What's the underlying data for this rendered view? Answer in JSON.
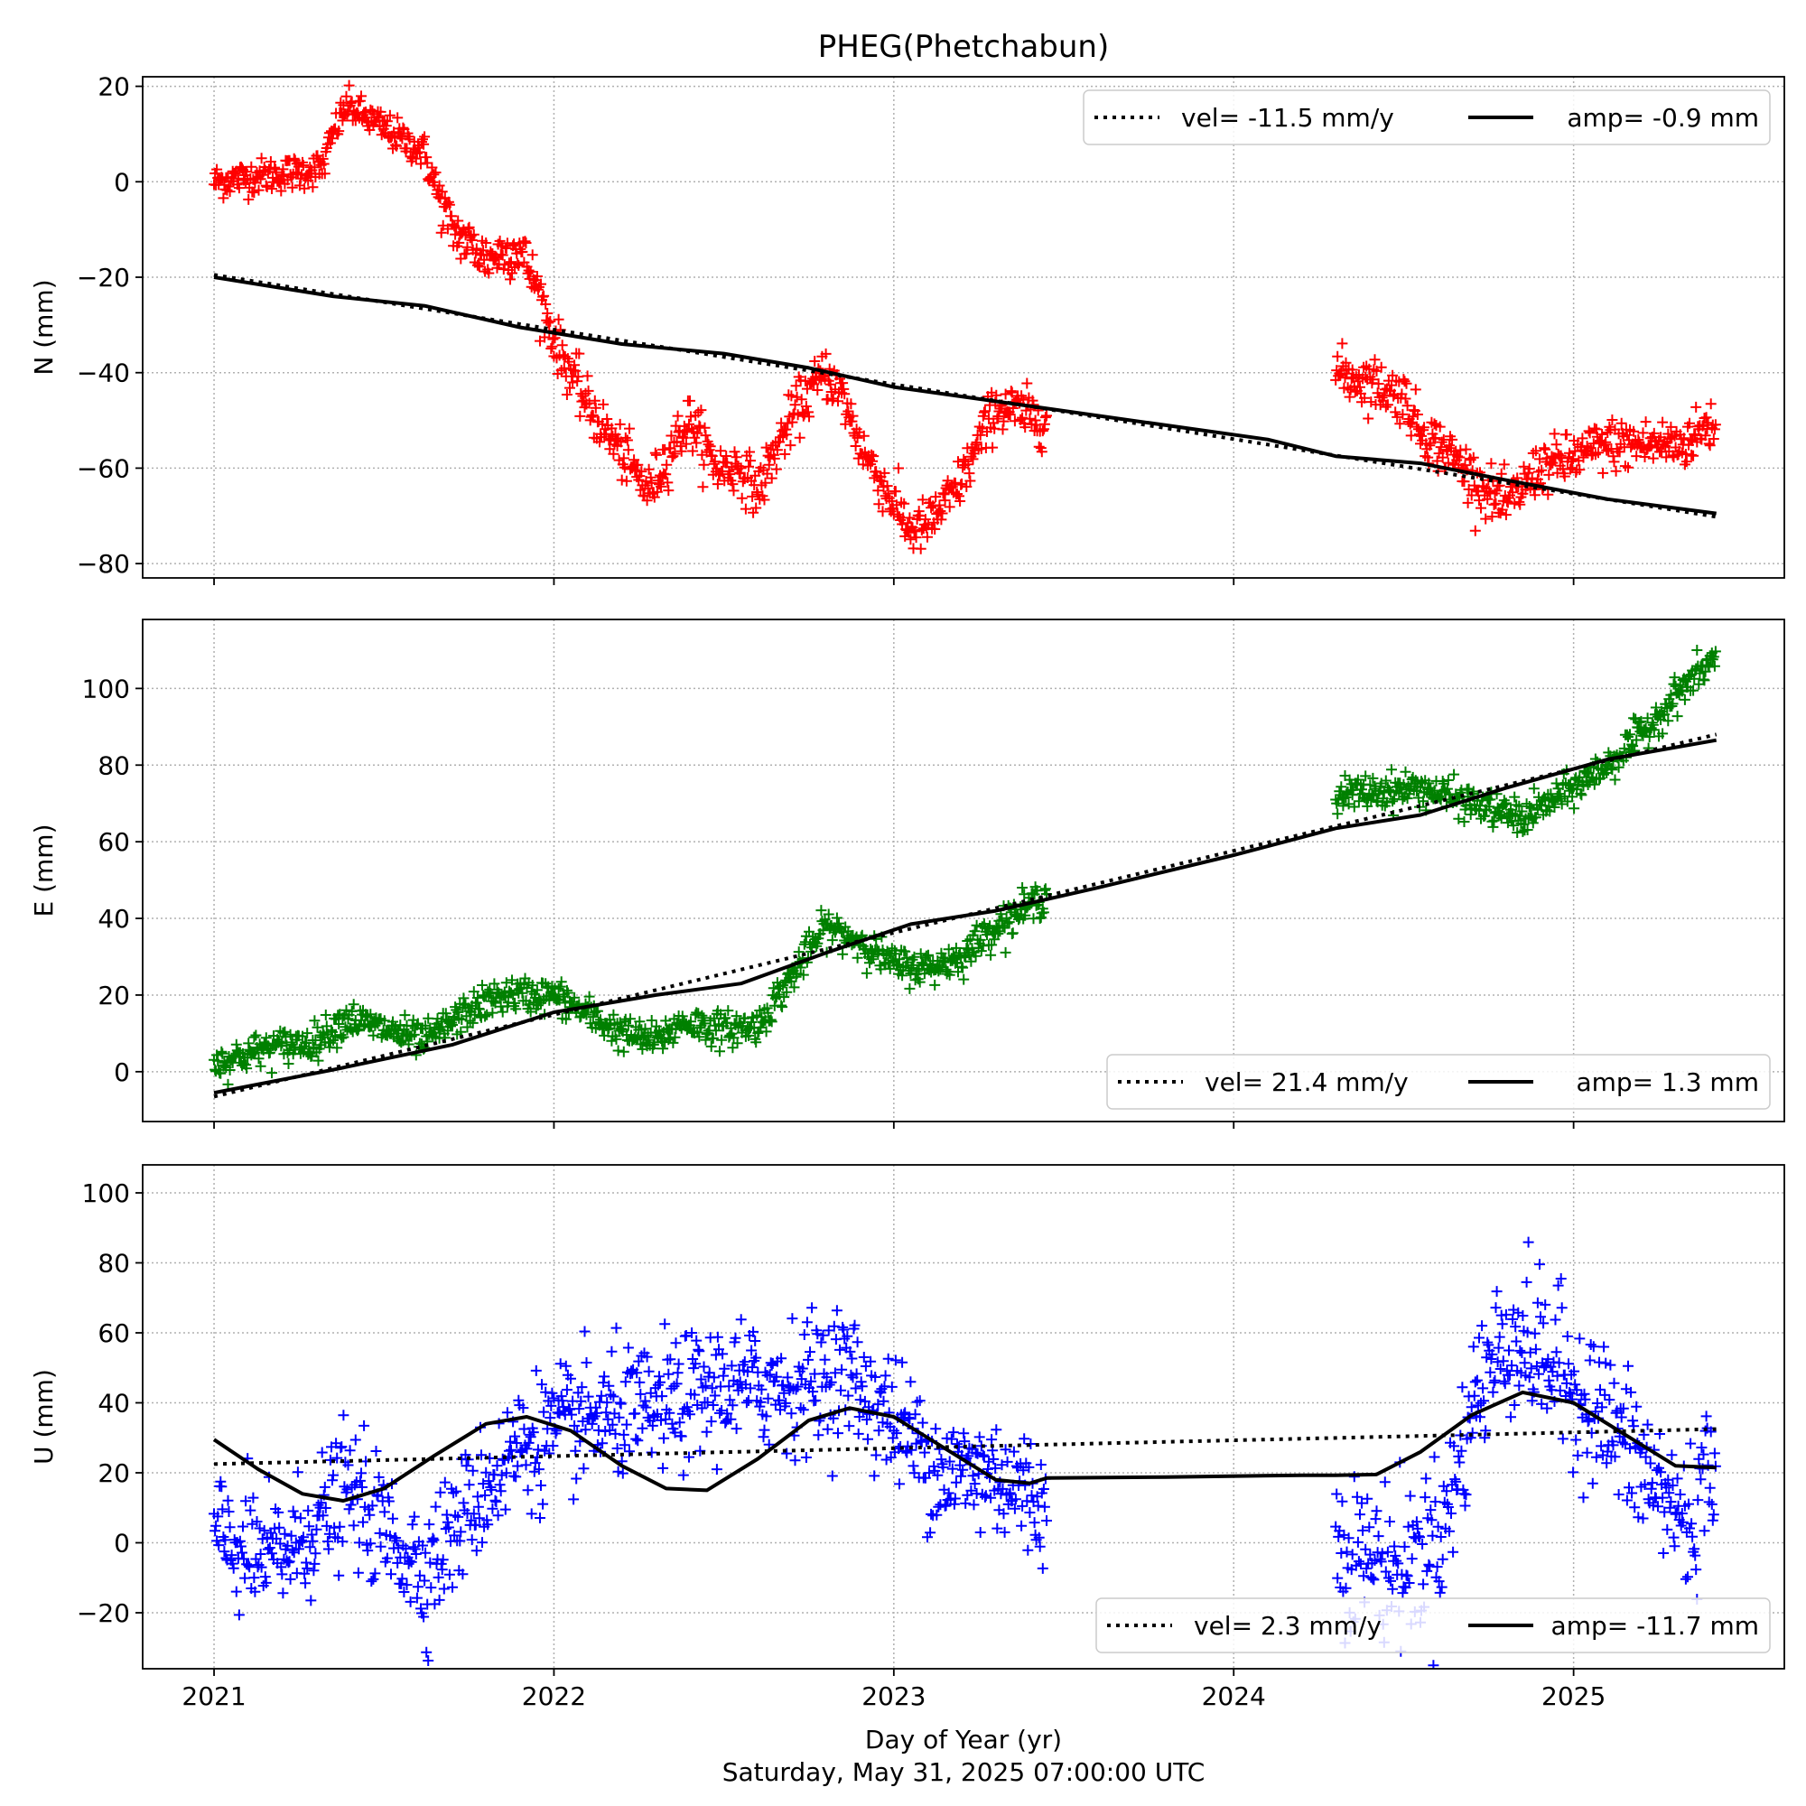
{
  "chart_data": {
    "type": "scatter",
    "title": "PHEG(Phetchabun)",
    "xlabel": "Day of Year (yr)",
    "caption": "Saturday, May 31, 2025 07:00:00 UTC",
    "xlim": [
      2020.79,
      2025.62
    ],
    "xticks": [
      2021,
      2022,
      2023,
      2024,
      2025
    ],
    "grid": true,
    "panels": [
      {
        "name": "N",
        "ylabel": "N (mm)",
        "ylim": [
          -83,
          22
        ],
        "yticks": [
          -80,
          -60,
          -40,
          -20,
          0,
          20
        ],
        "color": "#ff0000",
        "legend_position": "upper-right",
        "legend": {
          "vel": "vel= -11.5 mm/y",
          "amp": "amp= -0.9 mm"
        },
        "scatter_knots": [
          [
            2021.0,
            0,
            2
          ],
          [
            2021.1,
            1,
            2
          ],
          [
            2021.25,
            2,
            2
          ],
          [
            2021.32,
            3,
            2
          ],
          [
            2021.35,
            10,
            2
          ],
          [
            2021.39,
            16,
            2
          ],
          [
            2021.62,
            6,
            2
          ],
          [
            2021.66,
            -3,
            3
          ],
          [
            2021.7,
            -10,
            3
          ],
          [
            2021.8,
            -16,
            3
          ],
          [
            2021.9,
            -14,
            3
          ],
          [
            2021.95,
            -22,
            3
          ],
          [
            2022.0,
            -33,
            3
          ],
          [
            2022.1,
            -47,
            3
          ],
          [
            2022.2,
            -57,
            3
          ],
          [
            2022.28,
            -65,
            3
          ],
          [
            2022.35,
            -55,
            3
          ],
          [
            2022.4,
            -50,
            3
          ],
          [
            2022.48,
            -60,
            3
          ],
          [
            2022.55,
            -60,
            3
          ],
          [
            2022.6,
            -65,
            3
          ],
          [
            2022.66,
            -55,
            3
          ],
          [
            2022.72,
            -47,
            3
          ],
          [
            2022.8,
            -40,
            3
          ],
          [
            2022.85,
            -45,
            3
          ],
          [
            2022.9,
            -55,
            3
          ],
          [
            2022.98,
            -65,
            3
          ],
          [
            2023.05,
            -73,
            3
          ],
          [
            2023.1,
            -72,
            3
          ],
          [
            2023.18,
            -65,
            3
          ],
          [
            2023.25,
            -55,
            3
          ],
          [
            2023.3,
            -47,
            3
          ],
          [
            2023.45,
            -50,
            3
          ],
          [
            2024.3,
            -40,
            3
          ],
          [
            2024.4,
            -42,
            3
          ],
          [
            2024.5,
            -45,
            3
          ],
          [
            2024.55,
            -52,
            3
          ],
          [
            2024.65,
            -58,
            3
          ],
          [
            2024.75,
            -65,
            3
          ],
          [
            2024.8,
            -68,
            3
          ],
          [
            2024.9,
            -60,
            3
          ],
          [
            2025.0,
            -58,
            3
          ],
          [
            2025.1,
            -55,
            3
          ],
          [
            2025.2,
            -55,
            3
          ],
          [
            2025.32,
            -55,
            3
          ],
          [
            2025.42,
            -50,
            3
          ]
        ],
        "vel_line": [
          [
            2021.0,
            -19.5
          ],
          [
            2025.42,
            -70.2
          ]
        ],
        "amp_curve": [
          [
            2021.0,
            -20
          ],
          [
            2021.35,
            -24
          ],
          [
            2021.62,
            -26
          ],
          [
            2021.9,
            -30.5
          ],
          [
            2022.2,
            -34
          ],
          [
            2022.5,
            -36
          ],
          [
            2022.75,
            -39
          ],
          [
            2023.0,
            -43
          ],
          [
            2023.2,
            -45
          ],
          [
            2023.5,
            -48
          ],
          [
            2023.8,
            -51
          ],
          [
            2024.1,
            -54
          ],
          [
            2024.3,
            -57.5
          ],
          [
            2024.55,
            -59
          ],
          [
            2024.8,
            -62.5
          ],
          [
            2025.1,
            -66.5
          ],
          [
            2025.42,
            -69.5
          ]
        ]
      },
      {
        "name": "E",
        "ylabel": "E (mm)",
        "ylim": [
          -13,
          118
        ],
        "yticks": [
          0,
          20,
          40,
          60,
          80,
          100
        ],
        "color": "#008000",
        "legend_position": "lower-right",
        "legend": {
          "vel": "vel= 21.4 mm/y",
          "amp": "amp= 1.3 mm"
        },
        "scatter_knots": [
          [
            2021.0,
            2,
            2.5
          ],
          [
            2021.15,
            6,
            2.5
          ],
          [
            2021.3,
            8,
            2.5
          ],
          [
            2021.39,
            14,
            2.5
          ],
          [
            2021.62,
            8,
            2.5
          ],
          [
            2021.75,
            16,
            2.5
          ],
          [
            2021.85,
            20,
            2.5
          ],
          [
            2022.0,
            20,
            2.5
          ],
          [
            2022.1,
            15,
            2.5
          ],
          [
            2022.2,
            10,
            2.5
          ],
          [
            2022.3,
            8,
            2.5
          ],
          [
            2022.38,
            13,
            2.5
          ],
          [
            2022.5,
            11,
            2.5
          ],
          [
            2022.6,
            12,
            2.5
          ],
          [
            2022.7,
            25,
            2.5
          ],
          [
            2022.8,
            38,
            2.5
          ],
          [
            2022.9,
            34,
            2.5
          ],
          [
            2023.0,
            28,
            2.5
          ],
          [
            2023.1,
            27,
            2.5
          ],
          [
            2023.2,
            30,
            2.5
          ],
          [
            2023.3,
            38,
            2.5
          ],
          [
            2023.45,
            46,
            2.5
          ],
          [
            2024.3,
            72,
            2.5
          ],
          [
            2024.4,
            73,
            2.5
          ],
          [
            2024.55,
            74,
            2.5
          ],
          [
            2024.7,
            70,
            2.5
          ],
          [
            2024.85,
            66,
            2.5
          ],
          [
            2025.0,
            74,
            2.5
          ],
          [
            2025.1,
            80,
            2.5
          ],
          [
            2025.2,
            88,
            2.5
          ],
          [
            2025.32,
            100,
            2.5
          ],
          [
            2025.42,
            108,
            2.5
          ]
        ],
        "vel_line": [
          [
            2021.0,
            -6.5
          ],
          [
            2025.42,
            88
          ]
        ],
        "amp_curve": [
          [
            2021.0,
            -5.5
          ],
          [
            2021.35,
            0.5
          ],
          [
            2021.7,
            7
          ],
          [
            2022.0,
            15.5
          ],
          [
            2022.3,
            20
          ],
          [
            2022.55,
            23
          ],
          [
            2022.8,
            31
          ],
          [
            2023.05,
            38.5
          ],
          [
            2023.3,
            42
          ],
          [
            2023.6,
            48
          ],
          [
            2024.0,
            56.5
          ],
          [
            2024.3,
            63.5
          ],
          [
            2024.55,
            67
          ],
          [
            2024.8,
            74
          ],
          [
            2025.1,
            81.5
          ],
          [
            2025.42,
            86.5
          ]
        ]
      },
      {
        "name": "U",
        "ylabel": "U (mm)",
        "ylim": [
          -36,
          108
        ],
        "yticks": [
          -20,
          0,
          20,
          40,
          60,
          80,
          100
        ],
        "color": "#0000ff",
        "legend_position": "lower-right",
        "legend": {
          "vel": "vel= 2.3 mm/y",
          "amp": "amp= -11.7 mm"
        },
        "scatter_knots": [
          [
            2021.0,
            2,
            10
          ],
          [
            2021.15,
            -5,
            10
          ],
          [
            2021.25,
            0,
            10
          ],
          [
            2021.39,
            15,
            10
          ],
          [
            2021.62,
            -8,
            10
          ],
          [
            2021.75,
            10,
            10
          ],
          [
            2021.9,
            28,
            10
          ],
          [
            2022.1,
            35,
            10
          ],
          [
            2022.3,
            38,
            10
          ],
          [
            2022.5,
            45,
            10
          ],
          [
            2022.7,
            45,
            10
          ],
          [
            2022.85,
            50,
            10
          ],
          [
            2023.0,
            35,
            10
          ],
          [
            2023.15,
            20,
            10
          ],
          [
            2023.3,
            20,
            10
          ],
          [
            2023.45,
            10,
            10
          ],
          [
            2024.3,
            0,
            12
          ],
          [
            2024.5,
            -8,
            12
          ],
          [
            2024.62,
            5,
            12
          ],
          [
            2024.72,
            45,
            12
          ],
          [
            2024.82,
            60,
            12
          ],
          [
            2024.95,
            50,
            12
          ],
          [
            2025.1,
            35,
            12
          ],
          [
            2025.25,
            15,
            12
          ],
          [
            2025.35,
            5,
            12
          ],
          [
            2025.42,
            30,
            12
          ]
        ],
        "vel_line": [
          [
            2021.0,
            22.5
          ],
          [
            2025.42,
            32.5
          ]
        ],
        "amp_curve": [
          [
            2021.0,
            29.5
          ],
          [
            2021.13,
            21
          ],
          [
            2021.26,
            14
          ],
          [
            2021.38,
            12
          ],
          [
            2021.5,
            15.5
          ],
          [
            2021.65,
            25
          ],
          [
            2021.8,
            34
          ],
          [
            2021.92,
            36
          ],
          [
            2022.05,
            32
          ],
          [
            2022.2,
            22
          ],
          [
            2022.33,
            15.5
          ],
          [
            2022.45,
            15
          ],
          [
            2022.6,
            24
          ],
          [
            2022.75,
            35
          ],
          [
            2022.87,
            38.5
          ],
          [
            2023.0,
            36
          ],
          [
            2023.15,
            27
          ],
          [
            2023.3,
            18
          ],
          [
            2023.4,
            17
          ],
          [
            2023.45,
            18.5
          ],
          [
            2023.8,
            18.8
          ],
          [
            2024.2,
            19.3
          ],
          [
            2024.3,
            19.3
          ],
          [
            2024.42,
            19.5
          ],
          [
            2024.55,
            26
          ],
          [
            2024.7,
            36.5
          ],
          [
            2024.85,
            43
          ],
          [
            2025.0,
            40
          ],
          [
            2025.15,
            31
          ],
          [
            2025.3,
            22
          ],
          [
            2025.42,
            21.5
          ]
        ]
      }
    ]
  }
}
